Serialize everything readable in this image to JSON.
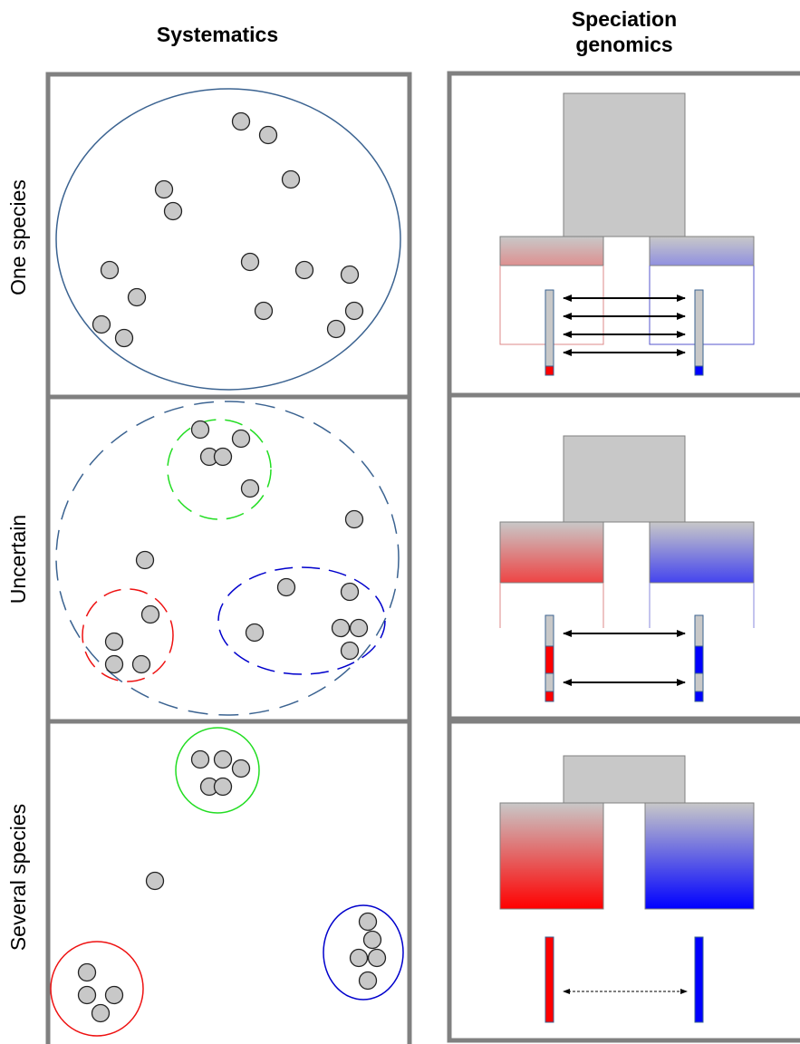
{
  "headers": {
    "systematics": "Systematics",
    "speciation_line1": "Speciation",
    "speciation_line2": "genomics"
  },
  "rows": [
    {
      "label": "One species"
    },
    {
      "label": "Uncertain"
    },
    {
      "label": "Several species"
    }
  ],
  "colors": {
    "frame": "#808080",
    "individual_fill": "#c8c8c8",
    "one_species_outline": "#3b6391",
    "green_cluster": "#22dd22",
    "red_cluster": "#ee1111",
    "blue_cluster": "#0000cc",
    "ancestor_fill": "#c8c8c8",
    "red_lineage": "#ff0000",
    "blue_lineage": "#0000ff"
  }
}
